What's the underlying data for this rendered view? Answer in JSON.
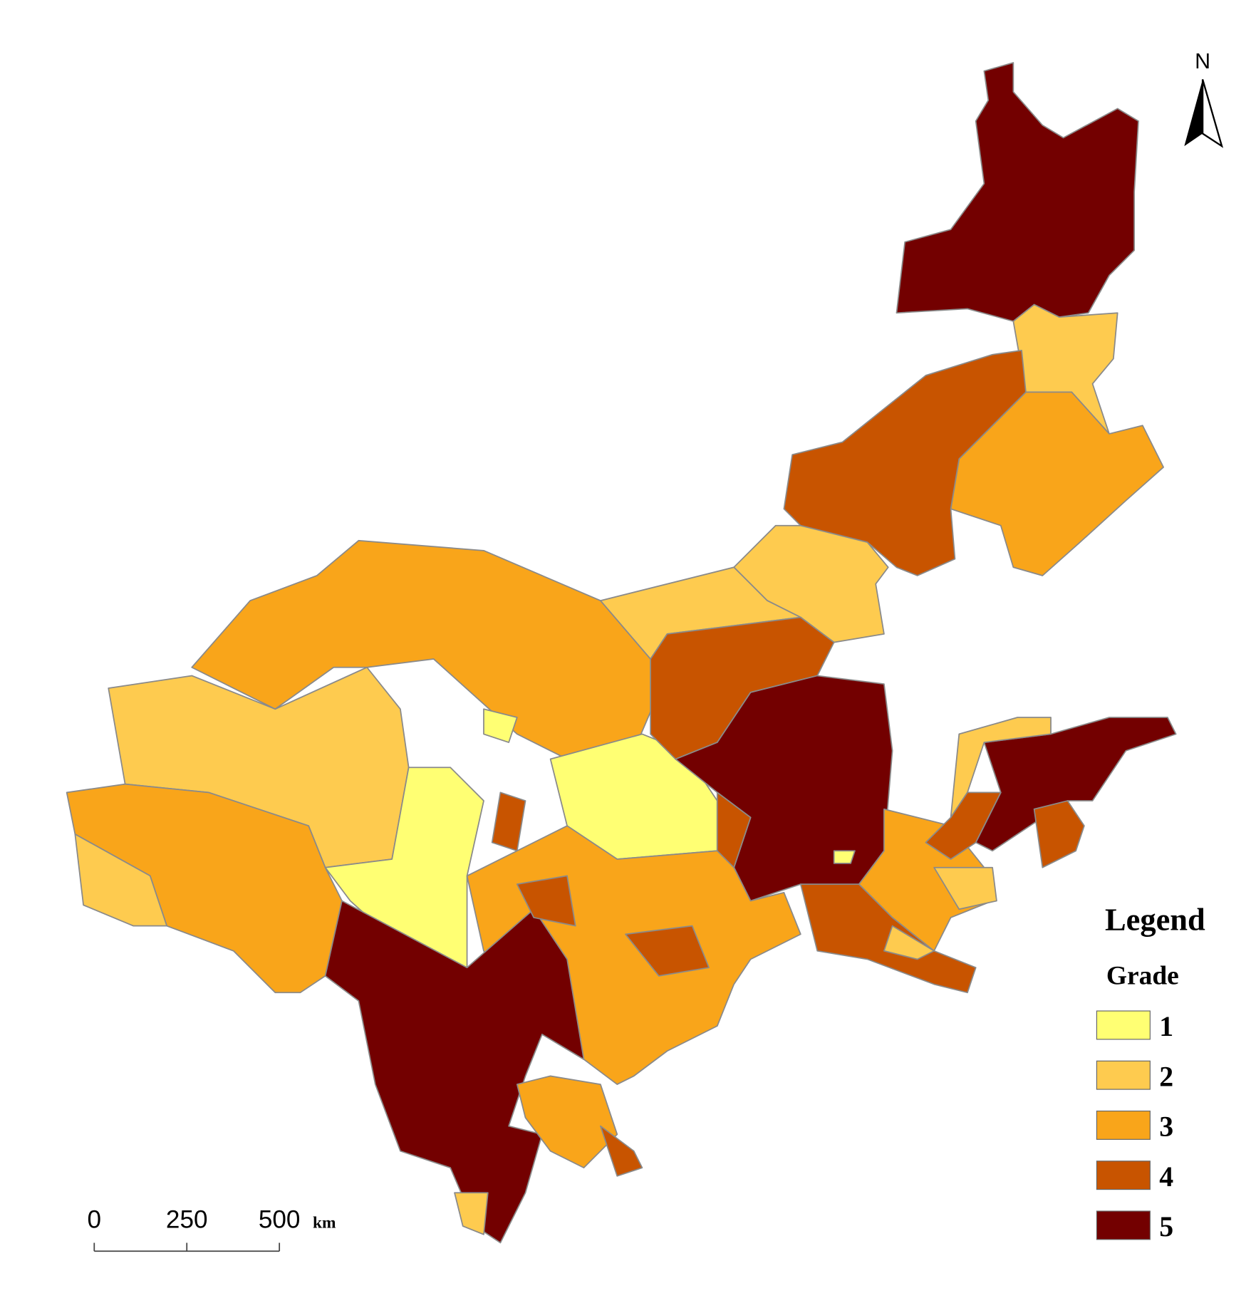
{
  "map": {
    "north_label": "N",
    "legend": {
      "title": "Legend",
      "subtitle": "Grade",
      "items": [
        {
          "label": 1,
          "color": "#ffff73"
        },
        {
          "label": 2,
          "color": "#fecb4f"
        },
        {
          "label": 3,
          "color": "#f9a51a"
        },
        {
          "label": 4,
          "color": "#c85400"
        },
        {
          "label": 5,
          "color": "#730000"
        }
      ]
    },
    "scale_bar": {
      "ticks": [
        0,
        250,
        500
      ],
      "unit": "km"
    }
  }
}
